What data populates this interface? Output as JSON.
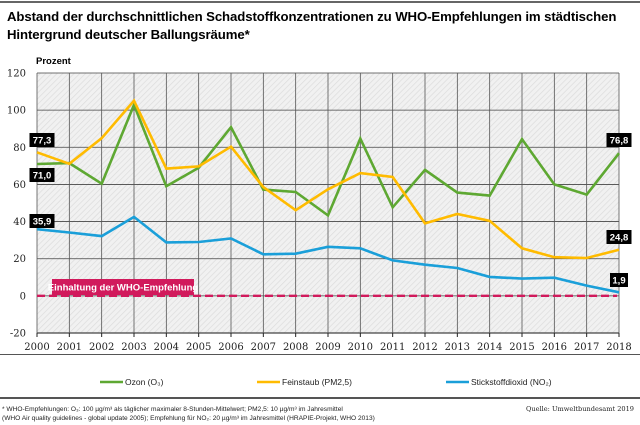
{
  "chart_data": {
    "type": "line",
    "title": "Abstand der durchschnittlichen Schadstoffkonzentrationen zu WHO-Empfehlungen im städtischen Hintergrund deutscher Ballungsräume*",
    "ylabel": "Prozent",
    "xlabel": "",
    "ylim": [
      -20,
      120
    ],
    "yticks": [
      -20,
      0,
      20,
      40,
      60,
      80,
      100,
      120
    ],
    "ytick_labels": [
      "-20",
      "0",
      "20",
      "40",
      "60",
      "80",
      "100",
      "120"
    ],
    "x": [
      2000,
      2001,
      2002,
      2003,
      2004,
      2005,
      2006,
      2007,
      2008,
      2009,
      2010,
      2011,
      2012,
      2013,
      2014,
      2015,
      2016,
      2017,
      2018
    ],
    "xtick_labels": [
      "2000",
      "2001",
      "2002",
      "2003",
      "2004",
      "2005",
      "2006",
      "2007",
      "2008",
      "2009",
      "2010",
      "2011",
      "2012",
      "2013",
      "2014",
      "2015",
      "2016",
      "2017",
      "2018"
    ],
    "grid": true,
    "legend_position": "bottom",
    "series": [
      {
        "name": "Ozon (O₃)",
        "key": "ozon",
        "color": "#5ea832",
        "values": [
          71.0,
          71.5,
          60.4,
          102.8,
          59.0,
          69.0,
          90.8,
          57.2,
          55.9,
          43.3,
          84.7,
          47.7,
          67.8,
          55.6,
          54.0,
          84.4,
          60.0,
          54.5,
          76.8
        ],
        "start_label": "71,0",
        "end_label": "76,8"
      },
      {
        "name": "Feinstaub (PM2,5)",
        "key": "pm25",
        "color": "#ffbb00",
        "values": [
          77.3,
          71.1,
          84.9,
          105.1,
          68.5,
          69.7,
          80.3,
          58.6,
          46.1,
          57.4,
          66.1,
          64.0,
          39.0,
          44.1,
          40.4,
          25.6,
          20.8,
          20.4,
          24.8
        ],
        "start_label": "77,3",
        "end_label": "24,8"
      },
      {
        "name": "Stickstoffdioxid (NO₂)",
        "key": "no2",
        "color": "#1a9fd9",
        "values": [
          35.9,
          34.1,
          32.2,
          42.5,
          28.8,
          29.0,
          30.9,
          22.4,
          22.7,
          26.4,
          25.6,
          19.1,
          16.8,
          15.0,
          10.2,
          9.3,
          9.8,
          5.5,
          1.9
        ],
        "start_label": "35,9",
        "end_label": "1,9"
      }
    ],
    "reference_line": {
      "value": 0,
      "label": "Einhaltung der WHO-Empfehlung",
      "color": "#d11a5c",
      "style": "dashed"
    }
  },
  "footnote": {
    "line1": "* WHO-Empfehlungen: O₃: 100 µg/m³ als täglicher maximaler 8-Stunden-Mittelwert; PM2,5: 10 µg/m³ im Jahresmittel",
    "line2": "(WHO Air quality guidelines - global update 2005); Empfehlung für NO₂: 20 µg/m³ im Jahresmittel (HRAPIE-Projekt, WHO 2013)"
  },
  "source": "Quelle: Umweltbundesamt 2019"
}
